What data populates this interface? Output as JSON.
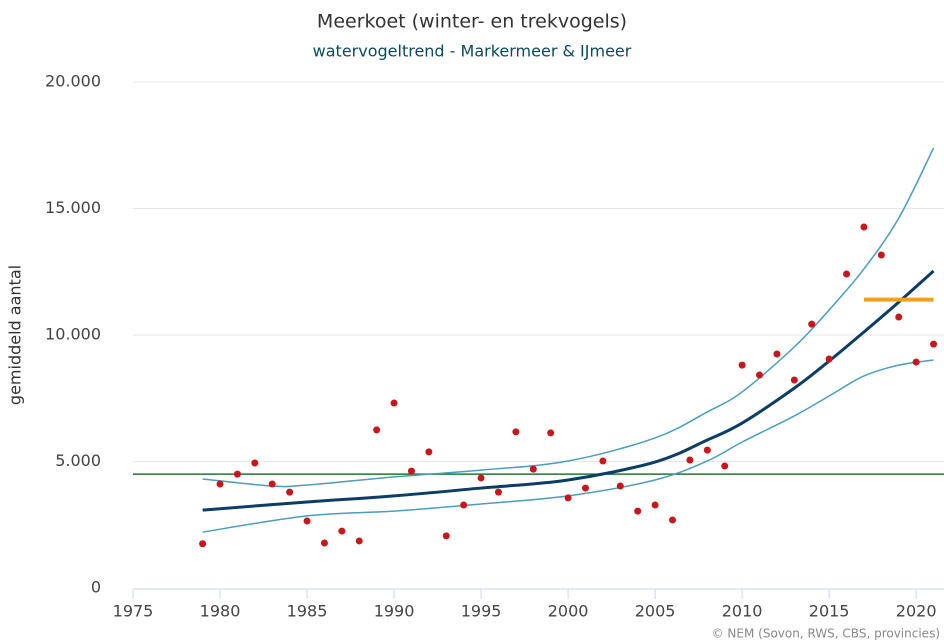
{
  "chart_data": {
    "type": "line",
    "title": "Meerkoet (winter- en trekvogels)",
    "subtitle": "watervogeltrend - Markermeer & IJmeer",
    "y_label": "gemiddeld aantal",
    "credit": "© NEM (Sovon, RWS, CBS, provincies)",
    "xlim": [
      1975,
      2021.6
    ],
    "xticks": [
      1975,
      1980,
      1985,
      1990,
      1995,
      2000,
      2005,
      2010,
      2015,
      2020
    ],
    "ylim": [
      0,
      20000
    ],
    "yticks": [
      0,
      {
        "value": 5000,
        "label": "5.000"
      },
      {
        "value": 10000,
        "label": "10.000"
      },
      {
        "value": 15000,
        "label": "15.000"
      },
      {
        "value": 20000,
        "label": "20.000"
      }
    ],
    "grid": true,
    "series": [
      {
        "type": "line",
        "color": "#1b7a2e",
        "width": 1.5,
        "x": [
          1975,
          2021.6
        ],
        "values": [
          4500,
          4500
        ]
      },
      {
        "type": "line",
        "color": "#4a9cc0",
        "width": 1.5,
        "x": [
          1979,
          1983,
          1985,
          1990,
          1995,
          2000,
          2005,
          2008,
          2010,
          2013,
          2015,
          2017,
          2019,
          2021
        ],
        "values": [
          4310,
          4030,
          4070,
          4390,
          4660,
          5020,
          5930,
          6960,
          7750,
          9530,
          10990,
          12610,
          14620,
          17390
        ]
      },
      {
        "type": "line",
        "color": "#4a9cc0",
        "width": 1.5,
        "x": [
          1979,
          1985,
          1990,
          1995,
          2000,
          2005,
          2008,
          2010,
          2013,
          2015,
          2017,
          2019,
          2021
        ],
        "values": [
          2210,
          2850,
          3040,
          3320,
          3640,
          4270,
          5020,
          5770,
          6800,
          7590,
          8380,
          8810,
          9010
        ]
      },
      {
        "type": "line",
        "color": "#0b3d66",
        "width": 3,
        "x": [
          1979,
          1985,
          1990,
          1995,
          2000,
          2005,
          2008,
          2010,
          2013,
          2015,
          2017,
          2019,
          2021
        ],
        "values": [
          3080,
          3400,
          3640,
          3950,
          4270,
          4980,
          5850,
          6520,
          7900,
          8970,
          10120,
          11300,
          12530
        ]
      },
      {
        "type": "line",
        "color": "#f0a01a",
        "width": 4,
        "x": [
          2017,
          2021
        ],
        "values": [
          11400,
          11400
        ]
      },
      {
        "type": "scatter",
        "color": "#c8161d",
        "x": [
          1979,
          1980,
          1981,
          1982,
          1983,
          1984,
          1985,
          1986,
          1987,
          1988,
          1989,
          1990,
          1991,
          1992,
          1993,
          1994,
          1995,
          1996,
          1997,
          1998,
          1999,
          2000,
          2001,
          2002,
          2003,
          2004,
          2005,
          2006,
          2007,
          2008,
          2009,
          2010,
          2011,
          2012,
          2013,
          2014,
          2015,
          2016,
          2017,
          2018,
          2019,
          2020,
          2021
        ],
        "values": [
          1750,
          4110,
          4500,
          4940,
          4110,
          3790,
          2650,
          1780,
          2250,
          1860,
          6250,
          7310,
          4620,
          5380,
          2060,
          3280,
          4350,
          3790,
          6170,
          4700,
          6130,
          3560,
          3950,
          5020,
          4030,
          3040,
          3280,
          2690,
          5060,
          5450,
          4820,
          8810,
          8420,
          9250,
          8220,
          10430,
          9050,
          12410,
          14270,
          13160,
          10710,
          8930,
          9640
        ]
      }
    ]
  }
}
